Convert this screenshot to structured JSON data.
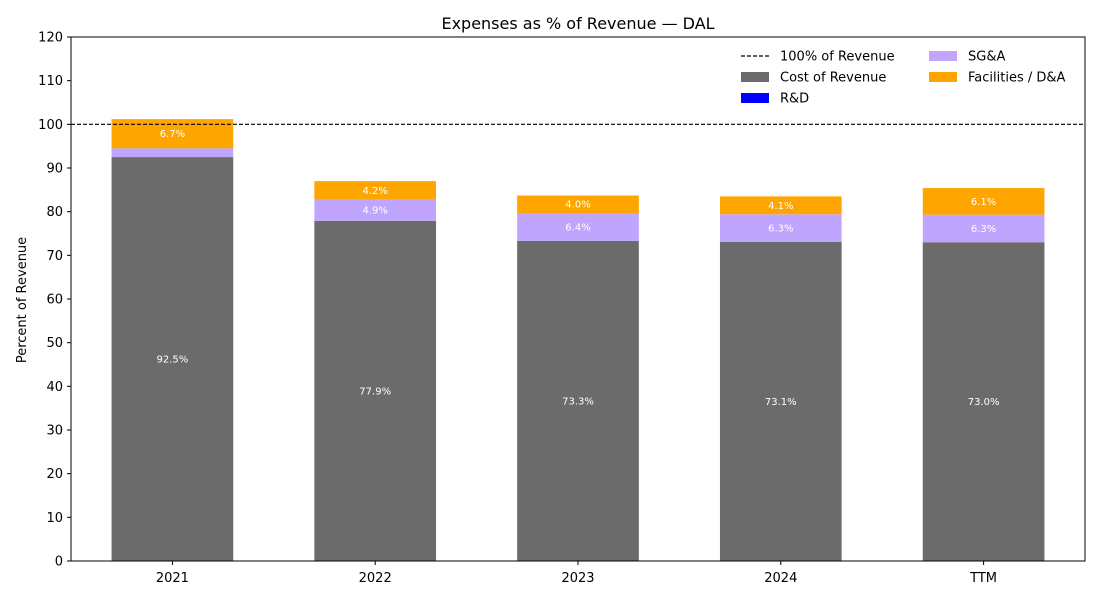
{
  "chart_data": {
    "type": "bar",
    "stacked": true,
    "title": "Expenses as % of Revenue — DAL",
    "xlabel": "",
    "ylabel": "Percent of Revenue",
    "ylim": [
      0,
      120
    ],
    "yticks": [
      0,
      10,
      20,
      30,
      40,
      50,
      60,
      70,
      80,
      90,
      100,
      110,
      120
    ],
    "categories": [
      "2021",
      "2022",
      "2023",
      "2024",
      "TTM"
    ],
    "series": [
      {
        "name": "Cost of Revenue",
        "color": "#6b6b6b",
        "values": [
          92.5,
          77.9,
          73.3,
          73.1,
          73.0
        ],
        "labels": [
          "92.5%",
          "77.9%",
          "73.3%",
          "73.1%",
          "73.0%"
        ]
      },
      {
        "name": "R&D",
        "color": "#0000ff",
        "values": [
          0,
          0,
          0,
          0,
          0
        ],
        "labels": [
          "",
          "",
          "",
          "",
          ""
        ]
      },
      {
        "name": "SG&A",
        "color": "#c0a5ff",
        "values": [
          2.0,
          4.9,
          6.4,
          6.3,
          6.3
        ],
        "labels": [
          "",
          "4.9%",
          "6.4%",
          "6.3%",
          "6.3%"
        ]
      },
      {
        "name": "Facilities / D&A",
        "color": "#ffa500",
        "values": [
          6.7,
          4.2,
          4.0,
          4.1,
          6.1
        ],
        "labels": [
          "6.7%",
          "4.2%",
          "4.0%",
          "4.1%",
          "6.1%"
        ]
      }
    ],
    "reference_line": {
      "name": "100% of Revenue",
      "value": 100,
      "style": "dashed",
      "color": "#000000"
    },
    "legend": {
      "placement": "top-right",
      "columns": 2,
      "order": [
        "100% of Revenue",
        "Cost of Revenue",
        "R&D",
        "SG&A",
        "Facilities / D&A"
      ]
    },
    "grid": false
  }
}
